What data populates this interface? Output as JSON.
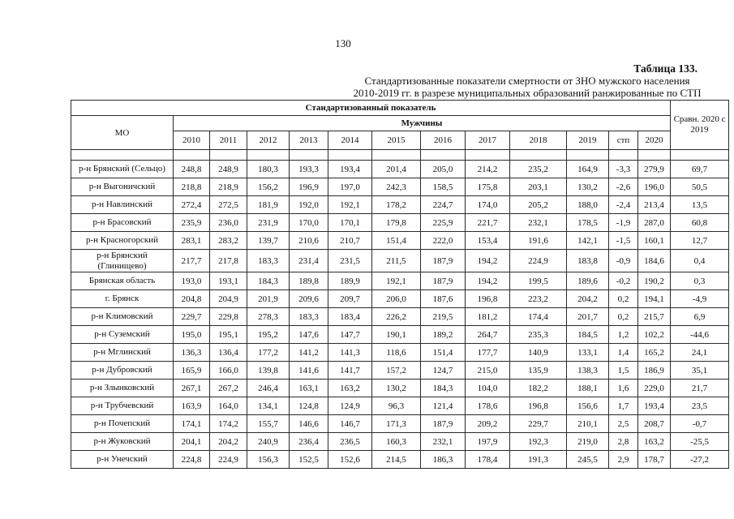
{
  "page": {
    "number": "130"
  },
  "caption": {
    "label": "Таблица 133."
  },
  "title": {
    "line1": "Стандартизованные показатели смертности от ЗНО мужского населения",
    "line2": "2010-2019 гг. в разрезе муниципальных образований ранжированные по СТП"
  },
  "table": {
    "header": {
      "top": "Стандартизованный показатель",
      "group": "Мужчины",
      "mo": "МО",
      "compare": "Сравн. 2020 с 2019",
      "years": [
        "2010",
        "2011",
        "2012",
        "2013",
        "2014",
        "2015",
        "2016",
        "2017",
        "2018",
        "2019",
        "стп",
        "2020"
      ]
    },
    "rows": [
      {
        "name": "р-н Брянский (Сельцо)",
        "values": [
          "248,8",
          "248,9",
          "180,3",
          "193,3",
          "193,4",
          "201,4",
          "205,0",
          "214,2",
          "235,2",
          "164,9",
          "-3,3",
          "279,9",
          "69,7"
        ]
      },
      {
        "name": "р-н Выгоничский",
        "values": [
          "218,8",
          "218,9",
          "156,2",
          "196,9",
          "197,0",
          "242,3",
          "158,5",
          "175,8",
          "203,1",
          "130,2",
          "-2,6",
          "196,0",
          "50,5"
        ]
      },
      {
        "name": "р-н Навлинский",
        "values": [
          "272,4",
          "272,5",
          "181,9",
          "192,0",
          "192,1",
          "178,2",
          "224,7",
          "174,0",
          "205,2",
          "188,0",
          "-2,4",
          "213,4",
          "13,5"
        ]
      },
      {
        "name": "р-н Брасовский",
        "values": [
          "235,9",
          "236,0",
          "231,9",
          "170,0",
          "170,1",
          "179,8",
          "225,9",
          "221,7",
          "232,1",
          "178,5",
          "-1,9",
          "287,0",
          "60,8"
        ]
      },
      {
        "name": "р-н Красногорский",
        "values": [
          "283,1",
          "283,2",
          "139,7",
          "210,6",
          "210,7",
          "151,4",
          "222,0",
          "153,4",
          "191,6",
          "142,1",
          "-1,5",
          "160,1",
          "12,7"
        ]
      },
      {
        "name": "р-н Брянский (Глинищево)",
        "values": [
          "217,7",
          "217,8",
          "183,3",
          "231,4",
          "231,5",
          "211,5",
          "187,9",
          "194,2",
          "224,9",
          "183,8",
          "-0,9",
          "184,6",
          "0,4"
        ]
      },
      {
        "name": "Брянская область",
        "values": [
          "193,0",
          "193,1",
          "184,3",
          "189,8",
          "189,9",
          "192,1",
          "187,9",
          "194,2",
          "199,5",
          "189,6",
          "-0,2",
          "190,2",
          "0,3"
        ]
      },
      {
        "name": "г. Брянск",
        "values": [
          "204,8",
          "204,9",
          "201,9",
          "209,6",
          "209,7",
          "206,0",
          "187,6",
          "196,8",
          "223,2",
          "204,2",
          "0,2",
          "194,1",
          "-4,9"
        ]
      },
      {
        "name": "р-н Климовский",
        "values": [
          "229,7",
          "229,8",
          "278,3",
          "183,3",
          "183,4",
          "226,2",
          "219,5",
          "181,2",
          "174,4",
          "201,7",
          "0,2",
          "215,7",
          "6,9"
        ]
      },
      {
        "name": "р-н Суземский",
        "values": [
          "195,0",
          "195,1",
          "195,2",
          "147,6",
          "147,7",
          "190,1",
          "189,2",
          "264,7",
          "235,3",
          "184,5",
          "1,2",
          "102,2",
          "-44,6"
        ]
      },
      {
        "name": "р-н Мглинский",
        "values": [
          "136,3",
          "136,4",
          "177,2",
          "141,2",
          "141,3",
          "118,6",
          "151,4",
          "177,7",
          "140,9",
          "133,1",
          "1,4",
          "165,2",
          "24,1"
        ]
      },
      {
        "name": "р-н Дубровский",
        "values": [
          "165,9",
          "166,0",
          "139,8",
          "141,6",
          "141,7",
          "157,2",
          "124,7",
          "215,0",
          "135,9",
          "138,3",
          "1,5",
          "186,9",
          "35,1"
        ]
      },
      {
        "name": "р-н Злынковский",
        "values": [
          "267,1",
          "267,2",
          "246,4",
          "163,1",
          "163,2",
          "130,2",
          "184,3",
          "104,0",
          "182,2",
          "188,1",
          "1,6",
          "229,0",
          "21,7"
        ]
      },
      {
        "name": "р-н Трубчевский",
        "values": [
          "163,9",
          "164,0",
          "134,1",
          "124,8",
          "124,9",
          "96,3",
          "121,4",
          "178,6",
          "196,8",
          "156,6",
          "1,7",
          "193,4",
          "23,5"
        ]
      },
      {
        "name": "р-н Почепский",
        "values": [
          "174,1",
          "174,2",
          "155,7",
          "146,6",
          "146,7",
          "171,3",
          "187,9",
          "209,2",
          "229,7",
          "210,1",
          "2,5",
          "208,7",
          "-0,7"
        ]
      },
      {
        "name": "р-н Жуковский",
        "values": [
          "204,1",
          "204,2",
          "240,9",
          "236,4",
          "236,5",
          "160,3",
          "232,1",
          "197,9",
          "192,3",
          "219,0",
          "2,8",
          "163,2",
          "-25,5"
        ]
      },
      {
        "name": "р-н Унечский",
        "values": [
          "224,8",
          "224,9",
          "156,3",
          "152,5",
          "152,6",
          "214,5",
          "186,3",
          "178,4",
          "191,3",
          "245,5",
          "2,9",
          "178,7",
          "-27,2"
        ]
      }
    ]
  }
}
